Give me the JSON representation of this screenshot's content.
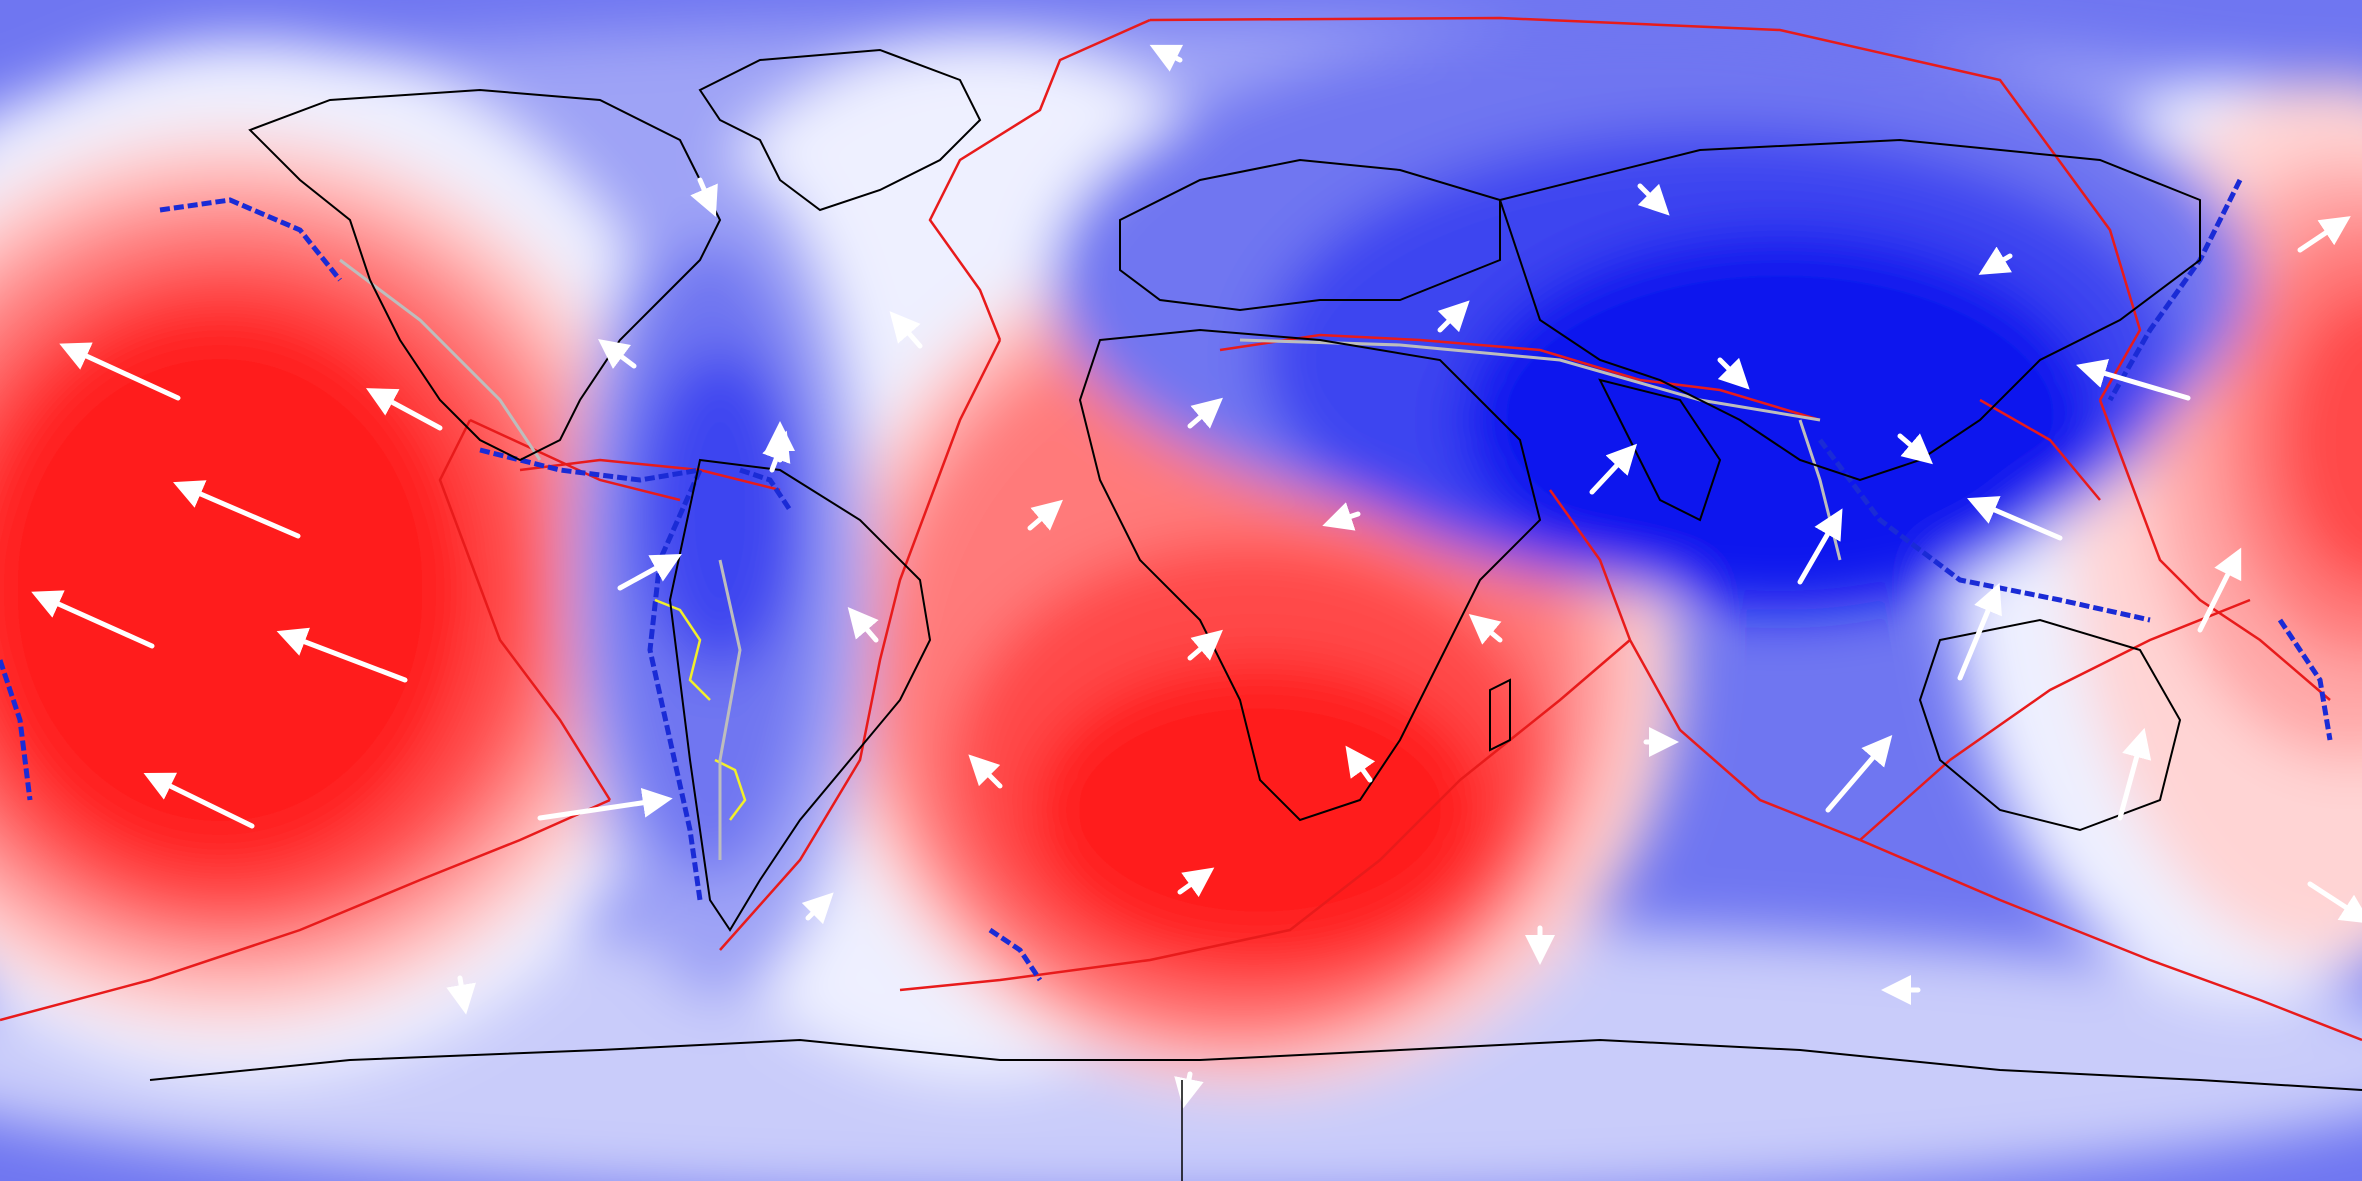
{
  "map": {
    "projection": "equirectangular",
    "field_colors": {
      "red_5": "#ff1f1f",
      "red_4": "#ff4a4a",
      "red_3": "#ff7a7a",
      "red_2": "#ffa8a8",
      "red_1": "#ffd4d4",
      "neutral": "#eef0ff",
      "blue_1": "#c9ccfa",
      "blue_2": "#9ea3f6",
      "blue_3": "#6f76f1",
      "blue_4": "#3d45f0",
      "blue_5": "#0d14ee"
    },
    "line_colors": {
      "coastline": "#000000",
      "plate_boundary": "#e81b1b",
      "subduction_zone": "#1a2bd6",
      "slab_contour": "#f2ef2a",
      "orogen": "#bdbdbd",
      "velocity_arrow": "#ffffff"
    }
  }
}
